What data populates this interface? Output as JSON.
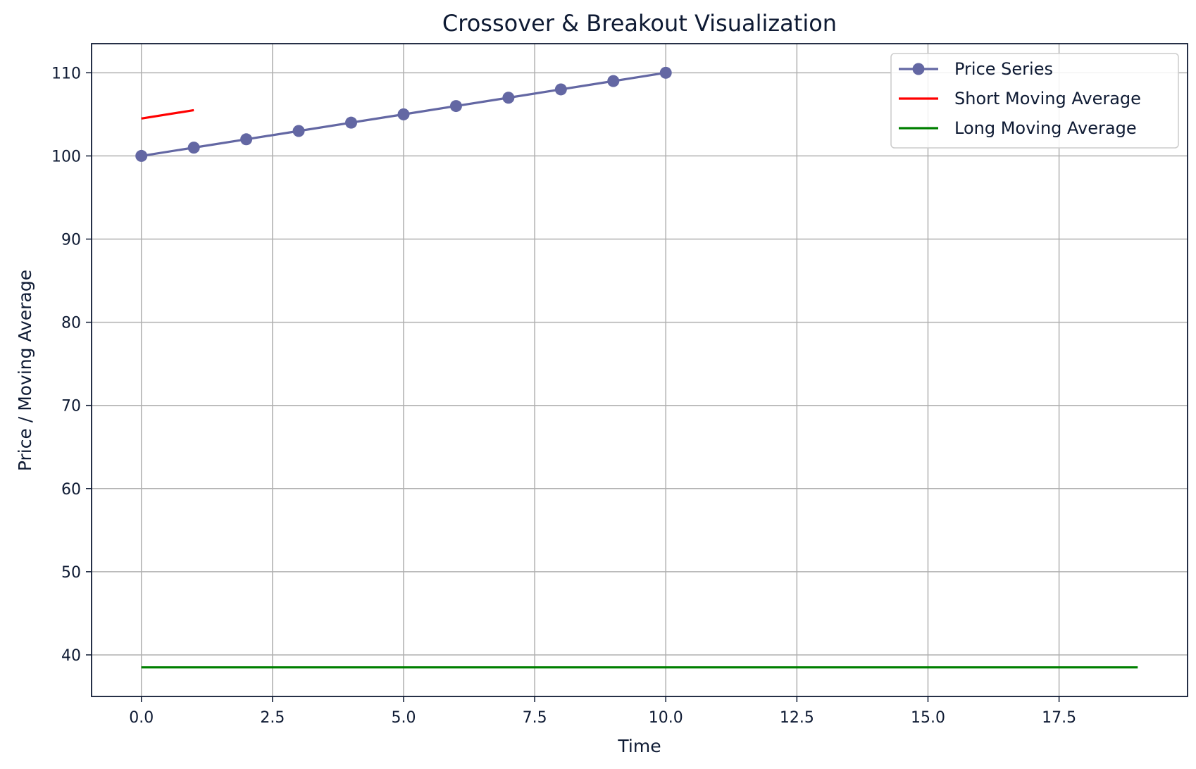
{
  "chart_data": {
    "type": "line",
    "title": "Crossover & Breakout Visualization",
    "xlabel": "Time",
    "ylabel": "Price / Moving Average",
    "xlim": [
      -0.95,
      19.95
    ],
    "ylim": [
      35,
      113.5
    ],
    "xticks": [
      0,
      2.5,
      5,
      7.5,
      10,
      12.5,
      15,
      17.5
    ],
    "xtick_labels": [
      "0.0",
      "2.5",
      "5.0",
      "7.5",
      "10.0",
      "12.5",
      "15.0",
      "17.5"
    ],
    "yticks": [
      40,
      50,
      60,
      70,
      80,
      90,
      100,
      110
    ],
    "ytick_labels": [
      "40",
      "50",
      "60",
      "70",
      "80",
      "90",
      "100",
      "110"
    ],
    "grid": true,
    "legend_position": "top-right",
    "series": [
      {
        "name": "Price Series",
        "color": "#6367a3",
        "marker": "circle",
        "x": [
          0,
          1,
          2,
          3,
          4,
          5,
          6,
          7,
          8,
          9,
          10
        ],
        "y": [
          100,
          101,
          102,
          103,
          104,
          105,
          106,
          107,
          108,
          109,
          110
        ]
      },
      {
        "name": "Short Moving Average",
        "color": "#ff0000",
        "marker": "none",
        "x": [
          0,
          1
        ],
        "y": [
          104.5,
          105.5
        ]
      },
      {
        "name": "Long Moving Average",
        "color": "#008000",
        "marker": "none",
        "x": [
          0,
          19
        ],
        "y": [
          38.5,
          38.5
        ]
      }
    ]
  },
  "colors": {
    "text": "#0e1a33",
    "axes": "#0e1a33",
    "grid": "#b0b0b0",
    "background": "#ffffff"
  }
}
